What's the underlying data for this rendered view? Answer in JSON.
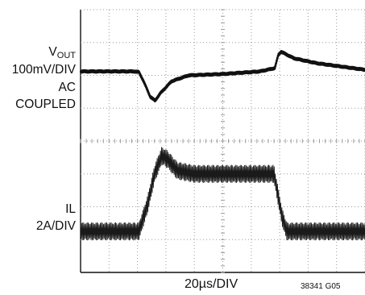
{
  "chart_data": {
    "type": "line",
    "title": "",
    "xlabel": "20µs/DIV",
    "figure_code": "38341 G05",
    "grid": true,
    "grid_style": "dotted",
    "divisions": {
      "x": 10,
      "y": 8
    },
    "x_unit": "div",
    "xlim": [
      0,
      10
    ],
    "ylim": [
      0,
      8
    ],
    "series": [
      {
        "name": "",
        "label_lines": {
          "main": "V",
          "sub": "OUT",
          "scale": "100mV/DIV",
          "coupling_1": "AC",
          "coupling_2": "COUPLED"
        },
        "ripple_div": 0.08,
        "points": [
          [
            0,
            6.12
          ],
          [
            1.9,
            6.12
          ],
          [
            2.05,
            6.1
          ],
          [
            2.2,
            5.85
          ],
          [
            2.45,
            5.35
          ],
          [
            2.62,
            5.23
          ],
          [
            2.8,
            5.45
          ],
          [
            3.2,
            5.82
          ],
          [
            3.8,
            6.0
          ],
          [
            5.0,
            6.04
          ],
          [
            6.3,
            6.12
          ],
          [
            6.83,
            6.22
          ],
          [
            6.95,
            6.62
          ],
          [
            7.05,
            6.72
          ],
          [
            7.5,
            6.52
          ],
          [
            8.3,
            6.37
          ],
          [
            10,
            6.17
          ]
        ]
      },
      {
        "name": "",
        "label_lines": {
          "main": "IL",
          "scale": "2A/DIV"
        },
        "ripple_div": 0.55,
        "points": [
          [
            0,
            1.25
          ],
          [
            2.05,
            1.25
          ],
          [
            2.35,
            2.05
          ],
          [
            2.6,
            3.0
          ],
          [
            2.85,
            3.55
          ],
          [
            3.05,
            3.45
          ],
          [
            3.4,
            3.1
          ],
          [
            4.0,
            3.0
          ],
          [
            6.0,
            3.0
          ],
          [
            6.8,
            3.0
          ],
          [
            7.08,
            1.7
          ],
          [
            7.25,
            1.25
          ],
          [
            10,
            1.25
          ]
        ]
      }
    ]
  }
}
